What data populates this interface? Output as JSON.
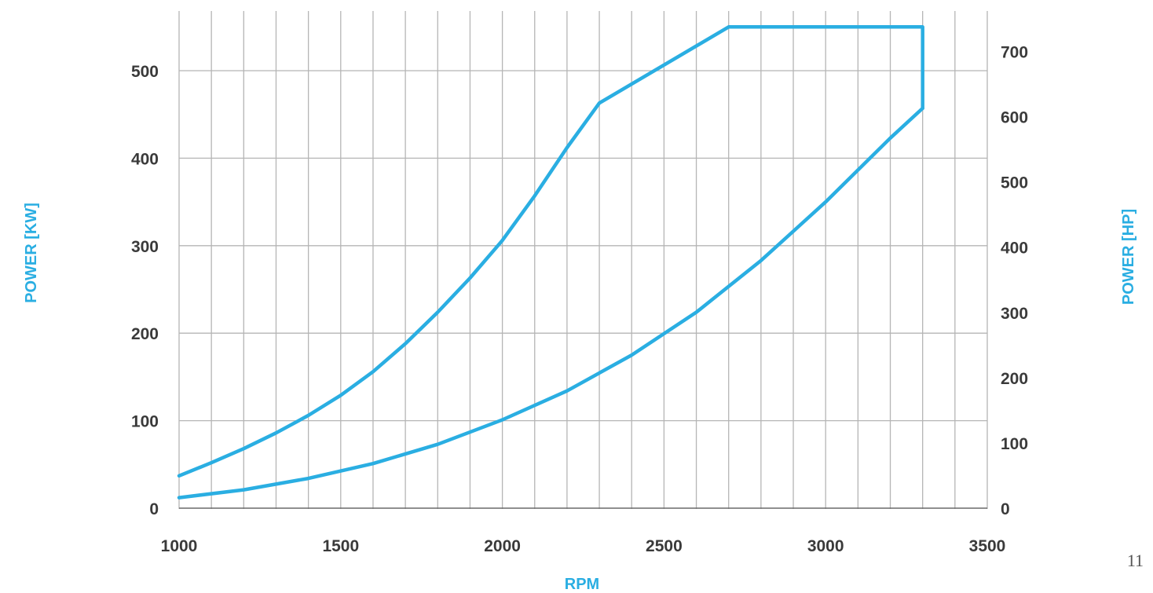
{
  "page_number": "11",
  "chart_data": {
    "type": "line",
    "title": "",
    "xlabel": "RPM",
    "ylabel_left": "POWER [KW]",
    "ylabel_right": "POWER [HP]",
    "xlim": [
      1000,
      3500
    ],
    "x_ticks": [
      1000,
      1500,
      2000,
      2500,
      3000,
      3500
    ],
    "x_minor_step": 100,
    "ylim_left": [
      0,
      550
    ],
    "y_ticks_left": [
      0,
      100,
      200,
      300,
      400,
      500
    ],
    "y_ticks_right": [
      0,
      100,
      200,
      300,
      400,
      500,
      600,
      700
    ],
    "kw_per_hp": 0.7457,
    "grid": true,
    "line_color": "#2aaee2",
    "series": [
      {
        "x": [
          1000,
          1100,
          1200,
          1300,
          1400,
          1500,
          1600,
          1700,
          1800,
          1900,
          2000,
          2100,
          2200,
          2300,
          2700,
          3300,
          3300
        ],
        "y": [
          37,
          52,
          68,
          86,
          106,
          129,
          156,
          188,
          224,
          263,
          306,
          357,
          412,
          463,
          550,
          550,
          457
        ]
      },
      {
        "x": [
          1000,
          1200,
          1400,
          1600,
          1800,
          2000,
          2200,
          2400,
          2600,
          2800,
          3000,
          3200,
          3300
        ],
        "y": [
          12,
          21,
          34,
          51,
          73,
          101,
          134,
          175,
          224,
          283,
          350,
          423,
          457
        ]
      }
    ]
  }
}
